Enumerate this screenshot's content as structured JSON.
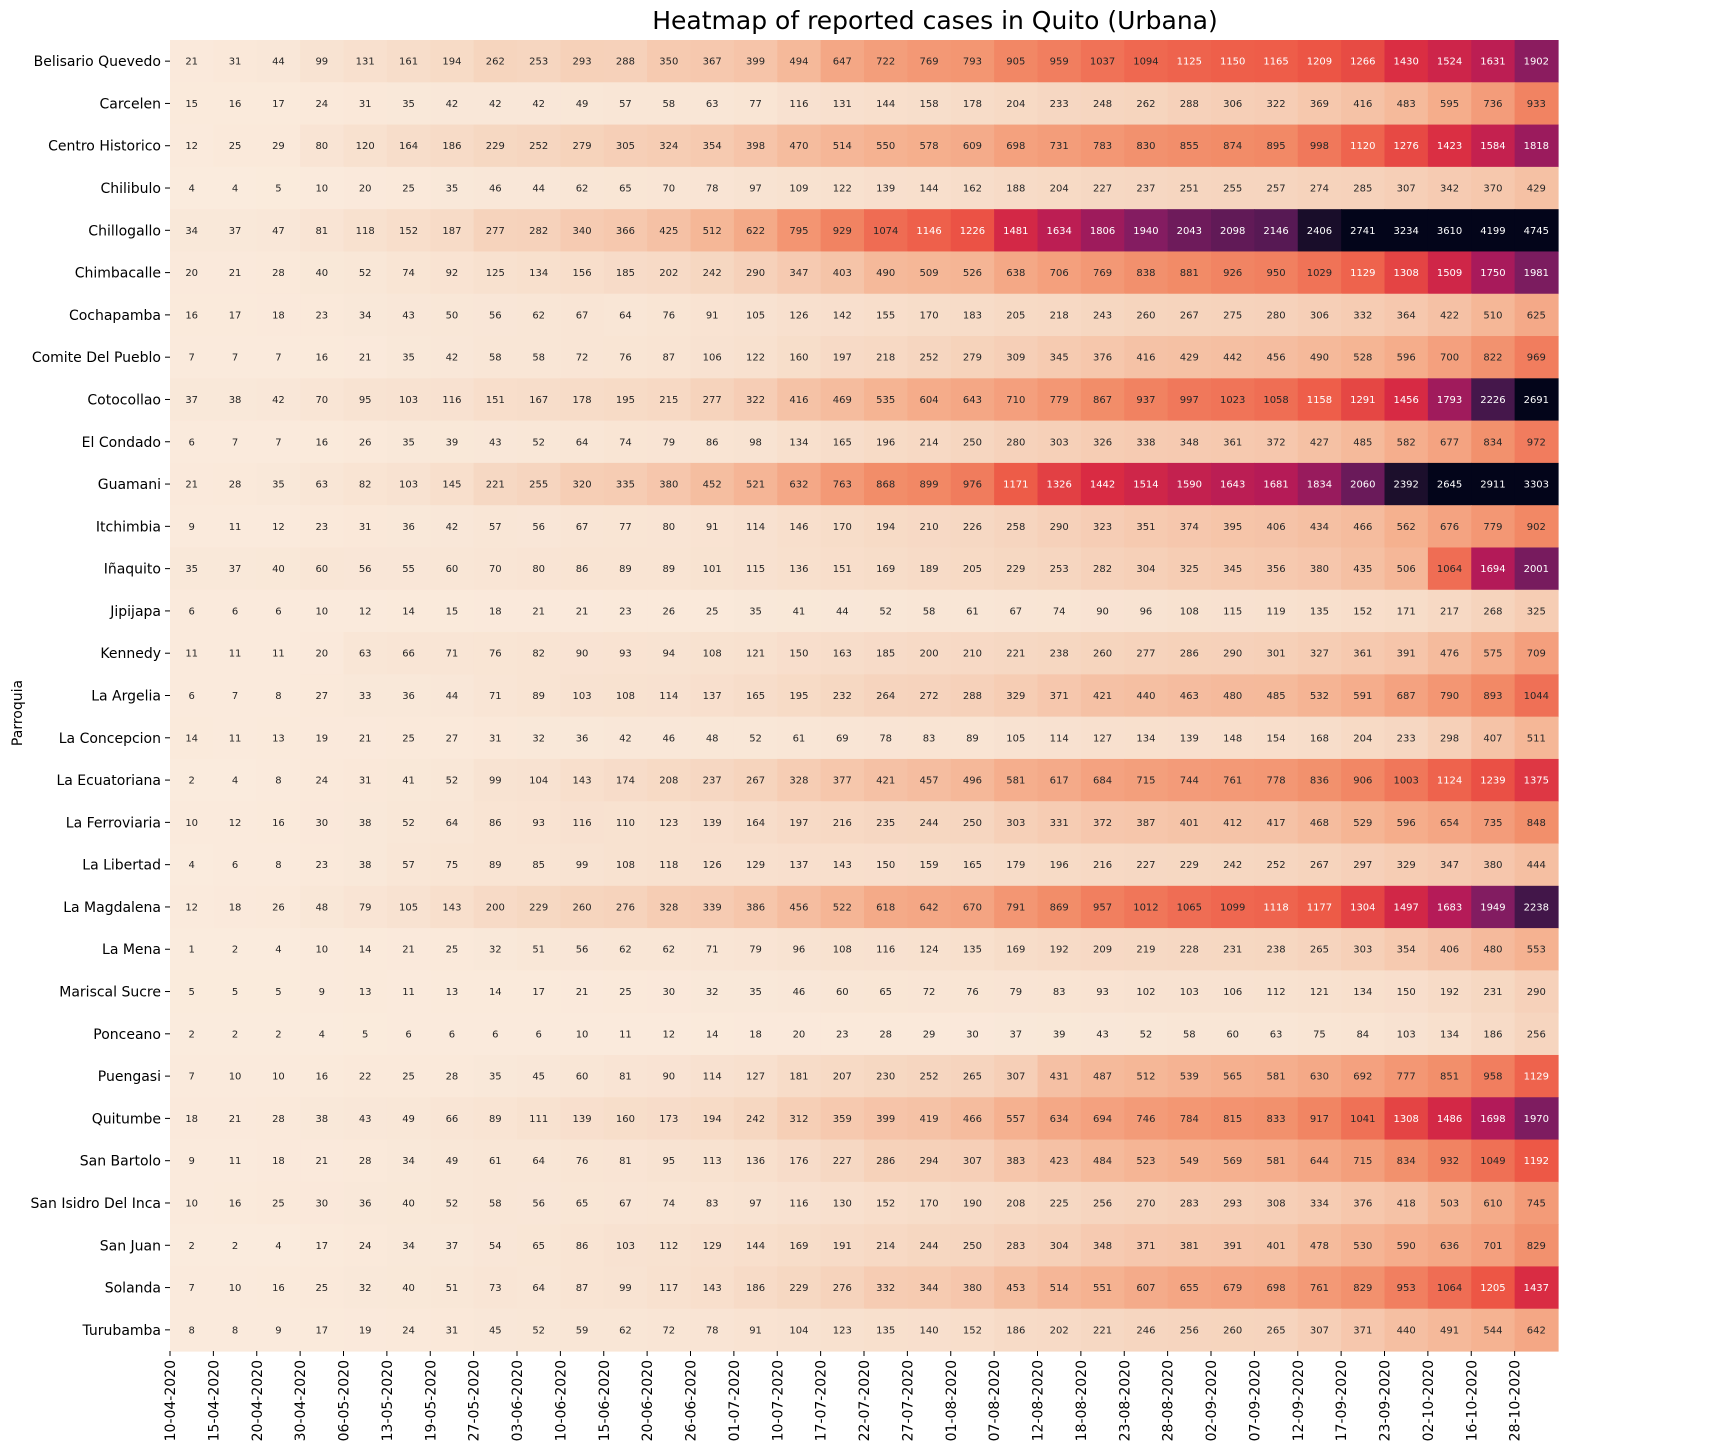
{
  "chart_data": {
    "type": "heatmap",
    "title": "Heatmap of reported cases in Quito (Urbana)",
    "ylabel": "Parroquia",
    "xlabel": "",
    "x": [
      "10-04-2020",
      "15-04-2020",
      "20-04-2020",
      "30-04-2020",
      "06-05-2020",
      "13-05-2020",
      "19-05-2020",
      "27-05-2020",
      "03-06-2020",
      "10-06-2020",
      "15-06-2020",
      "20-06-2020",
      "26-06-2020",
      "01-07-2020",
      "10-07-2020",
      "17-07-2020",
      "22-07-2020",
      "27-07-2020",
      "01-08-2020",
      "07-08-2020",
      "12-08-2020",
      "18-08-2020",
      "23-08-2020",
      "28-08-2020",
      "02-09-2020",
      "07-09-2020",
      "12-09-2020",
      "17-09-2020",
      "23-09-2020",
      "02-10-2020",
      "16-10-2020",
      "28-10-2020"
    ],
    "y": [
      "Belisario Quevedo",
      "Carcelen",
      "Centro Historico",
      "Chilibulo",
      "Chillogallo",
      "Chimbacalle",
      "Cochapamba",
      "Comite Del Pueblo",
      "Cotocollao",
      "El Condado",
      "Guamani",
      "Itchimbia",
      "Iñaquito",
      "Jipijapa",
      "Kennedy",
      "La Argelia",
      "La Concepcion",
      "La Ecuatoriana",
      "La Ferroviaria",
      "La Libertad",
      "La Magdalena",
      "La Mena",
      "Mariscal Sucre",
      "Ponceano",
      "Puengasi",
      "Quitumbe",
      "San Bartolo",
      "San Isidro Del Inca",
      "San Juan",
      "Solanda",
      "Turubamba"
    ],
    "values": [
      [
        21,
        31,
        44,
        99,
        131,
        161,
        194,
        262,
        253,
        293,
        288,
        350,
        367,
        399,
        494,
        647,
        722,
        769,
        793,
        905,
        959,
        1037,
        1094,
        1125,
        1150,
        1165,
        1209,
        1266,
        1430,
        1524,
        1631,
        1902
      ],
      [
        15,
        16,
        17,
        24,
        31,
        35,
        42,
        42,
        42,
        49,
        57,
        58,
        63,
        77,
        116,
        131,
        144,
        158,
        178,
        204,
        233,
        248,
        262,
        288,
        306,
        322,
        369,
        416,
        483,
        595,
        736,
        933
      ],
      [
        12,
        25,
        29,
        80,
        120,
        164,
        186,
        229,
        252,
        279,
        305,
        324,
        354,
        398,
        470,
        514,
        550,
        578,
        609,
        698,
        731,
        783,
        830,
        855,
        874,
        895,
        998,
        1120,
        1276,
        1423,
        1584,
        1818
      ],
      [
        4,
        4,
        5,
        10,
        20,
        25,
        35,
        46,
        44,
        62,
        65,
        70,
        78,
        97,
        109,
        122,
        139,
        144,
        162,
        188,
        204,
        227,
        237,
        251,
        255,
        257,
        274,
        285,
        307,
        342,
        370,
        429
      ],
      [
        34,
        37,
        47,
        81,
        118,
        152,
        187,
        277,
        282,
        340,
        366,
        425,
        512,
        622,
        795,
        929,
        1074,
        1146,
        1226,
        1481,
        1634,
        1806,
        1940,
        2043,
        2098,
        2146,
        2406,
        2741,
        3234,
        3610,
        4199,
        4745
      ],
      [
        20,
        21,
        28,
        40,
        52,
        74,
        92,
        125,
        134,
        156,
        185,
        202,
        242,
        290,
        347,
        403,
        490,
        509,
        526,
        638,
        706,
        769,
        838,
        881,
        926,
        950,
        1029,
        1129,
        1308,
        1509,
        1750,
        1981
      ],
      [
        16,
        17,
        18,
        23,
        34,
        43,
        50,
        56,
        62,
        67,
        64,
        76,
        91,
        105,
        126,
        142,
        155,
        170,
        183,
        205,
        218,
        243,
        260,
        267,
        275,
        280,
        306,
        332,
        364,
        422,
        510,
        625
      ],
      [
        7,
        7,
        7,
        16,
        21,
        35,
        42,
        58,
        58,
        72,
        76,
        87,
        106,
        122,
        160,
        197,
        218,
        252,
        279,
        309,
        345,
        376,
        416,
        429,
        442,
        456,
        490,
        528,
        596,
        700,
        822,
        969
      ],
      [
        37,
        38,
        42,
        70,
        95,
        103,
        116,
        151,
        167,
        178,
        195,
        215,
        277,
        322,
        416,
        469,
        535,
        604,
        643,
        710,
        779,
        867,
        937,
        997,
        1023,
        1058,
        1158,
        1291,
        1456,
        1793,
        2226,
        2691
      ],
      [
        6,
        7,
        7,
        16,
        26,
        35,
        39,
        43,
        52,
        64,
        74,
        79,
        86,
        98,
        134,
        165,
        196,
        214,
        250,
        280,
        303,
        326,
        338,
        348,
        361,
        372,
        427,
        485,
        582,
        677,
        834,
        972
      ],
      [
        21,
        28,
        35,
        63,
        82,
        103,
        145,
        221,
        255,
        320,
        335,
        380,
        452,
        521,
        632,
        763,
        868,
        899,
        976,
        1171,
        1326,
        1442,
        1514,
        1590,
        1643,
        1681,
        1834,
        2060,
        2392,
        2645,
        2911,
        3303
      ],
      [
        9,
        11,
        12,
        23,
        31,
        36,
        42,
        57,
        56,
        67,
        77,
        80,
        91,
        114,
        146,
        170,
        194,
        210,
        226,
        258,
        290,
        323,
        351,
        374,
        395,
        406,
        434,
        466,
        562,
        676,
        779,
        902
      ],
      [
        35,
        37,
        40,
        60,
        56,
        55,
        60,
        70,
        80,
        86,
        89,
        89,
        101,
        115,
        136,
        151,
        169,
        189,
        205,
        229,
        253,
        282,
        304,
        325,
        345,
        356,
        380,
        435,
        506,
        1064,
        1694,
        2001
      ],
      [
        6,
        6,
        6,
        10,
        12,
        14,
        15,
        18,
        21,
        21,
        23,
        26,
        25,
        35,
        41,
        44,
        52,
        58,
        61,
        67,
        74,
        90,
        96,
        108,
        115,
        119,
        135,
        152,
        171,
        217,
        268,
        325
      ],
      [
        11,
        11,
        11,
        20,
        63,
        66,
        71,
        76,
        82,
        90,
        93,
        94,
        108,
        121,
        150,
        163,
        185,
        200,
        210,
        221,
        238,
        260,
        277,
        286,
        290,
        301,
        327,
        361,
        391,
        476,
        575,
        709
      ],
      [
        6,
        7,
        8,
        27,
        33,
        36,
        44,
        71,
        89,
        103,
        108,
        114,
        137,
        165,
        195,
        232,
        264,
        272,
        288,
        329,
        371,
        421,
        440,
        463,
        480,
        485,
        532,
        591,
        687,
        790,
        893,
        1044
      ],
      [
        14,
        11,
        13,
        19,
        21,
        25,
        27,
        31,
        32,
        36,
        42,
        46,
        48,
        52,
        61,
        69,
        78,
        83,
        89,
        105,
        114,
        127,
        134,
        139,
        148,
        154,
        168,
        204,
        233,
        298,
        407,
        511
      ],
      [
        2,
        4,
        8,
        24,
        31,
        41,
        52,
        99,
        104,
        143,
        174,
        208,
        237,
        267,
        328,
        377,
        421,
        457,
        496,
        581,
        617,
        684,
        715,
        744,
        761,
        778,
        836,
        906,
        1003,
        1124,
        1239,
        1375
      ],
      [
        10,
        12,
        16,
        30,
        38,
        52,
        64,
        86,
        93,
        116,
        110,
        123,
        139,
        164,
        197,
        216,
        235,
        244,
        250,
        303,
        331,
        372,
        387,
        401,
        412,
        417,
        468,
        529,
        596,
        654,
        735,
        848
      ],
      [
        4,
        6,
        8,
        23,
        38,
        57,
        75,
        89,
        85,
        99,
        108,
        118,
        126,
        129,
        137,
        143,
        150,
        159,
        165,
        179,
        196,
        216,
        227,
        229,
        242,
        252,
        267,
        297,
        329,
        347,
        380,
        444
      ],
      [
        12,
        18,
        26,
        48,
        79,
        105,
        143,
        200,
        229,
        260,
        276,
        328,
        339,
        386,
        456,
        522,
        618,
        642,
        670,
        791,
        869,
        957,
        1012,
        1065,
        1099,
        1118,
        1177,
        1304,
        1497,
        1683,
        1949,
        2238
      ],
      [
        1,
        2,
        4,
        10,
        14,
        21,
        25,
        32,
        51,
        56,
        62,
        62,
        71,
        79,
        96,
        108,
        116,
        124,
        135,
        169,
        192,
        209,
        219,
        228,
        231,
        238,
        265,
        303,
        354,
        406,
        480,
        553
      ],
      [
        5,
        5,
        5,
        9,
        13,
        11,
        13,
        14,
        17,
        21,
        25,
        30,
        32,
        35,
        46,
        60,
        65,
        72,
        76,
        79,
        83,
        93,
        102,
        103,
        106,
        112,
        121,
        134,
        150,
        192,
        231,
        290
      ],
      [
        2,
        2,
        2,
        4,
        5,
        6,
        6,
        6,
        6,
        10,
        11,
        12,
        14,
        18,
        20,
        23,
        28,
        29,
        30,
        37,
        39,
        43,
        52,
        58,
        60,
        63,
        75,
        84,
        103,
        134,
        186,
        256
      ],
      [
        7,
        10,
        10,
        16,
        22,
        25,
        28,
        35,
        45,
        60,
        81,
        90,
        114,
        127,
        181,
        207,
        230,
        252,
        265,
        307,
        431,
        487,
        512,
        539,
        565,
        581,
        630,
        692,
        777,
        851,
        958,
        1129
      ],
      [
        18,
        21,
        28,
        38,
        43,
        49,
        66,
        89,
        111,
        139,
        160,
        173,
        194,
        242,
        312,
        359,
        399,
        419,
        466,
        557,
        634,
        694,
        746,
        784,
        815,
        833,
        917,
        1041,
        1308,
        1486,
        1698,
        1970
      ],
      [
        9,
        11,
        18,
        21,
        28,
        34,
        49,
        61,
        64,
        76,
        81,
        95,
        113,
        136,
        176,
        227,
        286,
        294,
        307,
        383,
        423,
        484,
        523,
        549,
        569,
        581,
        644,
        715,
        834,
        932,
        1049,
        1192
      ],
      [
        10,
        16,
        25,
        30,
        36,
        40,
        52,
        58,
        56,
        65,
        67,
        74,
        83,
        97,
        116,
        130,
        152,
        170,
        190,
        208,
        225,
        256,
        270,
        283,
        293,
        308,
        334,
        376,
        418,
        503,
        610,
        745
      ],
      [
        2,
        2,
        4,
        17,
        24,
        34,
        37,
        54,
        65,
        86,
        103,
        112,
        129,
        144,
        169,
        191,
        214,
        244,
        250,
        283,
        304,
        348,
        371,
        381,
        391,
        401,
        478,
        530,
        590,
        636,
        701,
        829
      ],
      [
        7,
        10,
        16,
        25,
        32,
        40,
        51,
        73,
        64,
        87,
        99,
        117,
        143,
        186,
        229,
        276,
        332,
        344,
        380,
        453,
        514,
        551,
        607,
        655,
        679,
        698,
        761,
        829,
        953,
        1064,
        1205,
        1437
      ],
      [
        8,
        8,
        9,
        17,
        19,
        24,
        31,
        45,
        52,
        59,
        62,
        72,
        78,
        91,
        104,
        123,
        135,
        140,
        152,
        186,
        202,
        221,
        246,
        256,
        260,
        265,
        307,
        371,
        440,
        491,
        544,
        642
      ]
    ],
    "vmin": 0,
    "vmax": 2500,
    "colormap": "rocket_r",
    "colors": {
      "low": "#faebdd",
      "mid": "#e13342",
      "high": "#03051a"
    }
  }
}
